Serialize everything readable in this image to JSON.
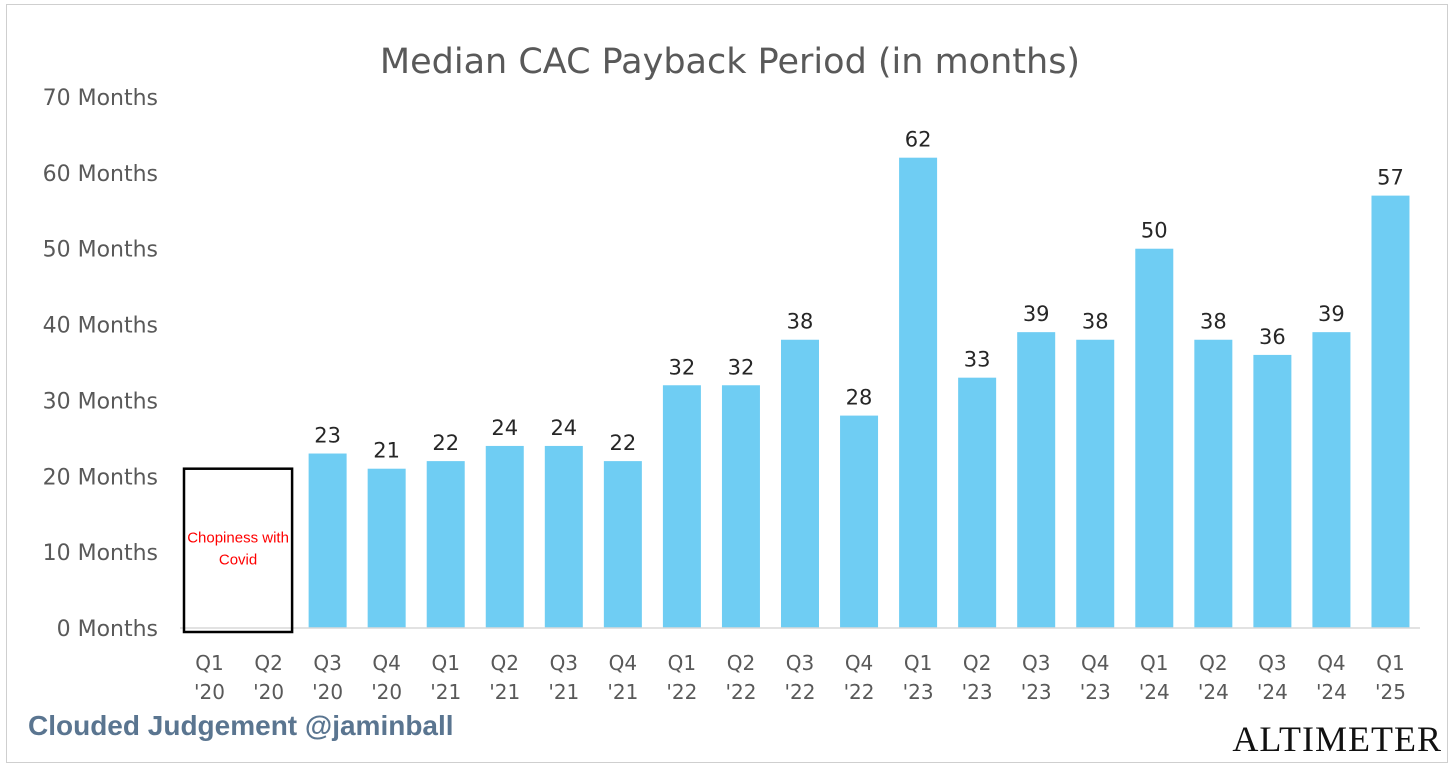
{
  "chart_data": {
    "type": "bar",
    "title": "Median CAC Payback Period (in months)",
    "xlabel": "",
    "ylabel": "",
    "ylim": [
      0,
      70
    ],
    "ytick_values": [
      0,
      10,
      20,
      30,
      40,
      50,
      60,
      70
    ],
    "ytick_labels": [
      "0 Months",
      "10 Months",
      "20 Months",
      "30 Months",
      "40 Months",
      "50 Months",
      "60 Months",
      "70 Months"
    ],
    "categories": [
      [
        "Q1",
        "'20"
      ],
      [
        "Q2",
        "'20"
      ],
      [
        "Q3",
        "'20"
      ],
      [
        "Q4",
        "'20"
      ],
      [
        "Q1",
        "'21"
      ],
      [
        "Q2",
        "'21"
      ],
      [
        "Q3",
        "'21"
      ],
      [
        "Q4",
        "'21"
      ],
      [
        "Q1",
        "'22"
      ],
      [
        "Q2",
        "'22"
      ],
      [
        "Q3",
        "'22"
      ],
      [
        "Q4",
        "'22"
      ],
      [
        "Q1",
        "'23"
      ],
      [
        "Q2",
        "'23"
      ],
      [
        "Q3",
        "'23"
      ],
      [
        "Q4",
        "'23"
      ],
      [
        "Q1",
        "'24"
      ],
      [
        "Q2",
        "'24"
      ],
      [
        "Q3",
        "'24"
      ],
      [
        "Q4",
        "'24"
      ],
      [
        "Q1",
        "'25"
      ]
    ],
    "values": [
      null,
      null,
      23,
      21,
      22,
      24,
      24,
      22,
      32,
      32,
      38,
      28,
      62,
      33,
      39,
      38,
      50,
      38,
      36,
      39,
      57
    ],
    "data_labels": [
      "",
      "",
      "23",
      "21",
      "22",
      "24",
      "24",
      "22",
      "32",
      "32",
      "38",
      "28",
      "62",
      "33",
      "39",
      "38",
      "50",
      "38",
      "36",
      "39",
      "57"
    ],
    "bar_color": "#6fcdf3",
    "grid": false,
    "legend": "none",
    "annotation": {
      "lines": [
        "Chopiness with",
        "Covid"
      ],
      "color": "#ff0000",
      "covers_categories": [
        0,
        1
      ],
      "box_top_value": 21
    }
  },
  "footer": {
    "credit": "Clouded Judgement @jaminball",
    "brand": "ALTIMETER"
  },
  "colors": {
    "credit": "#5a7590",
    "text": "#595959"
  }
}
